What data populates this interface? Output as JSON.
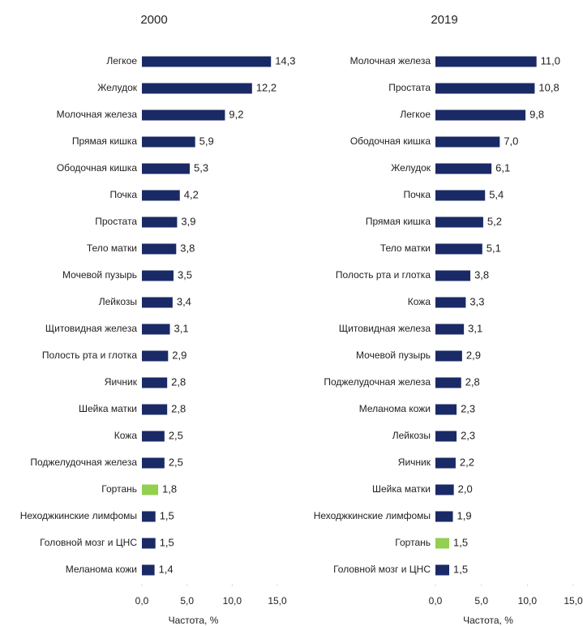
{
  "chart_data": [
    {
      "type": "bar",
      "title": "2000",
      "x_label": "Частота, %",
      "categories": [
        "Легкое",
        "Желудок",
        "Молочная железа",
        "Прямая кишка",
        "Ободочная кишка",
        "Почка",
        "Простата",
        "Тело матки",
        "Мочевой пузырь",
        "Лейкозы",
        "Щитовидная железа",
        "Полость рта и глотка",
        "Яичник",
        "Шейка матки",
        "Кожа",
        "Поджелудочная железа",
        "Гортань",
        "Неходжкинские лимфомы",
        "Головной мозг и ЦНС",
        "Меланома кожи"
      ],
      "values": [
        14.3,
        12.2,
        9.2,
        5.9,
        5.3,
        4.2,
        3.9,
        3.8,
        3.5,
        3.4,
        3.1,
        2.9,
        2.8,
        2.8,
        2.5,
        2.5,
        1.8,
        1.5,
        1.5,
        1.4
      ],
      "value_labels": [
        "14,3",
        "12,2",
        "9,2",
        "5,9",
        "5,3",
        "4,2",
        "3,9",
        "3,8",
        "3,5",
        "3,4",
        "3,1",
        "2,9",
        "2,8",
        "2,8",
        "2,5",
        "2,5",
        "1,8",
        "1,5",
        "1,5",
        "1,4"
      ],
      "colors": [
        "#1a2a66",
        "#1a2a66",
        "#1a2a66",
        "#1a2a66",
        "#1a2a66",
        "#1a2a66",
        "#1a2a66",
        "#1a2a66",
        "#1a2a66",
        "#1a2a66",
        "#1a2a66",
        "#1a2a66",
        "#1a2a66",
        "#1a2a66",
        "#1a2a66",
        "#1a2a66",
        "#92d050",
        "#1a2a66",
        "#1a2a66",
        "#1a2a66"
      ],
      "xlim": [
        0,
        15
      ],
      "xticks": [
        {
          "value": 0,
          "label": "0,0"
        },
        {
          "value": 5,
          "label": "5,0"
        },
        {
          "value": 10,
          "label": "10,0"
        },
        {
          "value": 15,
          "label": "15,0"
        }
      ]
    },
    {
      "type": "bar",
      "title": "2019",
      "x_label": "Частота, %",
      "categories": [
        "Молочная железа",
        "Простата",
        "Легкое",
        "Ободочная кишка",
        "Желудок",
        "Почка",
        "Прямая кишка",
        "Тело матки",
        "Полость рта и глотка",
        "Кожа",
        "Щитовидная железа",
        "Мочевой пузырь",
        "Поджелудочная железа",
        "Меланома кожи",
        "Лейкозы",
        "Яичник",
        "Шейка матки",
        "Неходжкинские лимфомы",
        "Гортань",
        "Головной мозг и ЦНС"
      ],
      "values": [
        11.0,
        10.8,
        9.8,
        7.0,
        6.1,
        5.4,
        5.2,
        5.1,
        3.8,
        3.3,
        3.1,
        2.9,
        2.8,
        2.3,
        2.3,
        2.2,
        2.0,
        1.9,
        1.5,
        1.5
      ],
      "value_labels": [
        "11,0",
        "10,8",
        "9,8",
        "7,0",
        "6,1",
        "5,4",
        "5,2",
        "5,1",
        "3,8",
        "3,3",
        "3,1",
        "2,9",
        "2,8",
        "2,3",
        "2,3",
        "2,2",
        "2,0",
        "1,9",
        "1,5",
        "1,5"
      ],
      "colors": [
        "#1a2a66",
        "#1a2a66",
        "#1a2a66",
        "#1a2a66",
        "#1a2a66",
        "#1a2a66",
        "#1a2a66",
        "#1a2a66",
        "#1a2a66",
        "#1a2a66",
        "#1a2a66",
        "#1a2a66",
        "#1a2a66",
        "#1a2a66",
        "#1a2a66",
        "#1a2a66",
        "#1a2a66",
        "#1a2a66",
        "#92d050",
        "#1a2a66"
      ],
      "xlim": [
        0,
        15
      ],
      "xticks": [
        {
          "value": 0,
          "label": "0,0"
        },
        {
          "value": 5,
          "label": "5,0"
        },
        {
          "value": 10,
          "label": "10,0"
        },
        {
          "value": 15,
          "label": "15,0"
        }
      ]
    }
  ]
}
